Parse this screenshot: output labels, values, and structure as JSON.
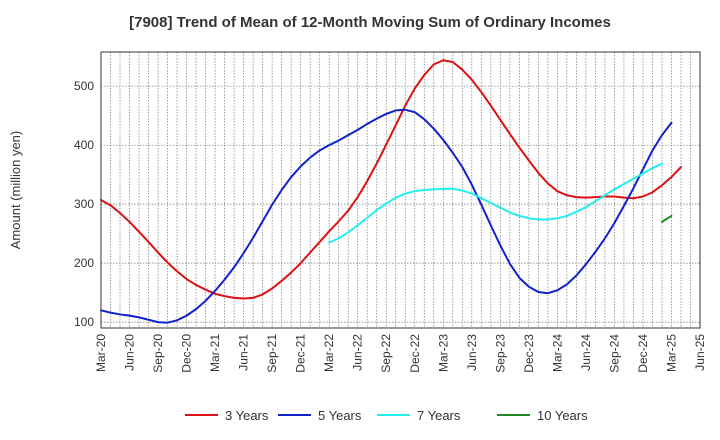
{
  "chart_data": {
    "type": "line",
    "title": "[7908]  Trend of Mean of 12-Month Moving Sum of Ordinary Incomes",
    "xlabel": "",
    "ylabel": "Amount (million yen)",
    "ylim": [
      90,
      558
    ],
    "yticks": [
      100,
      200,
      300,
      400,
      500
    ],
    "x_tick_labels": [
      "Mar-20",
      "Jun-20",
      "Sep-20",
      "Dec-20",
      "Mar-21",
      "Jun-21",
      "Sep-21",
      "Dec-21",
      "Mar-22",
      "Jun-22",
      "Sep-22",
      "Dec-22",
      "Mar-23",
      "Jun-23",
      "Sep-23",
      "Dec-23",
      "Mar-24",
      "Jun-24",
      "Sep-24",
      "Dec-24",
      "Mar-25",
      "Jun-25"
    ],
    "grid": true,
    "legend_position": "bottom",
    "series": [
      {
        "name": "3 Years",
        "color": "#dd1111",
        "start_index": 0,
        "values": [
          307,
          298,
          285,
          270,
          253,
          236,
          218,
          201,
          186,
          173,
          163,
          155,
          148,
          144,
          141,
          140,
          141,
          147,
          157,
          170,
          184,
          200,
          218,
          236,
          254,
          271,
          289,
          312,
          339,
          369,
          401,
          434,
          467,
          496,
          519,
          537,
          544,
          541,
          528,
          511,
          490,
          467,
          443,
          419,
          396,
          374,
          353,
          335,
          322,
          315,
          312,
          311,
          312,
          313,
          313,
          311,
          310,
          313,
          320,
          332,
          346,
          363
        ]
      },
      {
        "name": "5 Years",
        "color": "#1122cc",
        "start_index": 0,
        "values": [
          120,
          116,
          113,
          111,
          108,
          104,
          100,
          99,
          103,
          111,
          122,
          136,
          153,
          172,
          193,
          217,
          243,
          271,
          299,
          324,
          346,
          364,
          379,
          391,
          400,
          408,
          417,
          426,
          436,
          445,
          453,
          459,
          460,
          456,
          444,
          428,
          409,
          387,
          363,
          333,
          299,
          264,
          230,
          199,
          175,
          160,
          151,
          149,
          154,
          164,
          179,
          198,
          219,
          242,
          268,
          297,
          327,
          359,
          391,
          417,
          438
        ]
      },
      {
        "name": "7 Years",
        "color": "#22eeee",
        "start_index": 24,
        "values": [
          235,
          242,
          252,
          264,
          277,
          290,
          301,
          311,
          318,
          322,
          324,
          325,
          326,
          326,
          323,
          318,
          310,
          302,
          294,
          286,
          280,
          276,
          274,
          274,
          276,
          280,
          287,
          295,
          305,
          315,
          325,
          334,
          343,
          352,
          361,
          369
        ]
      },
      {
        "name": "10 Years",
        "color": "#228822",
        "start_index": 59,
        "values": [
          270,
          280
        ]
      }
    ]
  }
}
